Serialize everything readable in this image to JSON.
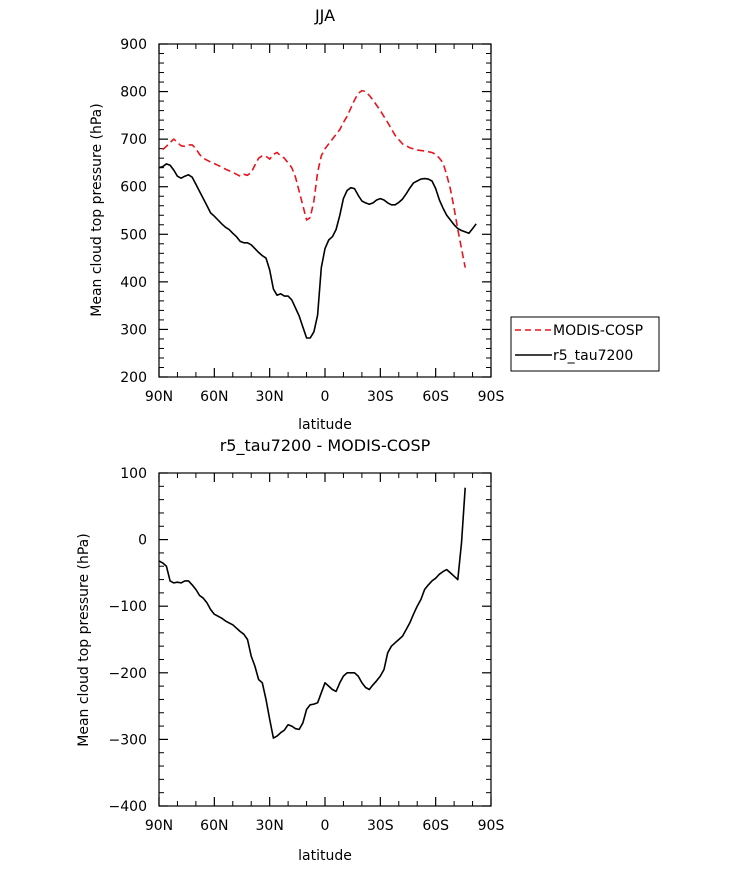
{
  "chart_data": [
    {
      "type": "line",
      "title": "JJA",
      "xlabel": "latitude",
      "ylabel": "Mean cloud top pressure (hPa)",
      "xlim": [
        -90,
        90
      ],
      "ylim": [
        200,
        900
      ],
      "x_ticks": [
        -90,
        -60,
        -30,
        0,
        30,
        60,
        90
      ],
      "x_tick_labels": [
        "90N",
        "60N",
        "30N",
        "0",
        "30S",
        "60S",
        "90S"
      ],
      "y_ticks": [
        200,
        300,
        400,
        500,
        600,
        700,
        800,
        900
      ],
      "y_tick_labels": [
        "200",
        "300",
        "400",
        "500",
        "600",
        "700",
        "800",
        "900"
      ],
      "legend": {
        "position": "right",
        "entries": [
          "MODIS-COSP",
          "r5_tau7200"
        ]
      },
      "series": [
        {
          "name": "MODIS-COSP",
          "color": "#e8141e",
          "dash": "dashed",
          "x": [
            -88,
            -86,
            -84,
            -82,
            -80,
            -78,
            -76,
            -74,
            -72,
            -70,
            -68,
            -66,
            -62,
            -58,
            -54,
            -50,
            -46,
            -44,
            -42,
            -40,
            -38,
            -36,
            -34,
            -32,
            -30,
            -28,
            -26,
            -24,
            -22,
            -20,
            -18,
            -16,
            -14,
            -12,
            -10,
            -8,
            -6,
            -4,
            -2,
            0,
            4,
            8,
            10,
            12,
            14,
            16,
            18,
            20,
            22,
            24,
            26,
            30,
            34,
            38,
            42,
            46,
            50,
            54,
            58,
            60,
            62,
            64,
            66,
            68,
            70,
            72,
            74,
            76
          ],
          "y": [
            678,
            685,
            693,
            700,
            693,
            686,
            685,
            688,
            688,
            680,
            668,
            660,
            652,
            645,
            637,
            630,
            622,
            626,
            624,
            630,
            645,
            660,
            665,
            664,
            658,
            668,
            672,
            665,
            660,
            650,
            640,
            620,
            590,
            560,
            530,
            535,
            570,
            630,
            665,
            680,
            700,
            720,
            735,
            748,
            765,
            782,
            796,
            802,
            800,
            792,
            782,
            760,
            735,
            708,
            690,
            682,
            677,
            675,
            672,
            668,
            660,
            650,
            625,
            595,
            555,
            510,
            470,
            430
          ]
        },
        {
          "name": "r5_tau7200",
          "color": "#000000",
          "dash": "solid",
          "x": [
            -90,
            -88,
            -86,
            -84,
            -82,
            -80,
            -78,
            -76,
            -74,
            -72,
            -70,
            -68,
            -66,
            -64,
            -62,
            -60,
            -58,
            -56,
            -54,
            -52,
            -50,
            -48,
            -46,
            -44,
            -42,
            -40,
            -38,
            -36,
            -34,
            -32,
            -30,
            -28,
            -26,
            -24,
            -22,
            -20,
            -18,
            -16,
            -14,
            -12,
            -10,
            -8,
            -6,
            -4,
            -2,
            0,
            2,
            4,
            6,
            8,
            10,
            12,
            14,
            16,
            18,
            20,
            22,
            24,
            26,
            28,
            30,
            32,
            34,
            36,
            38,
            40,
            42,
            44,
            46,
            48,
            50,
            52,
            54,
            56,
            58,
            60,
            62,
            64,
            66,
            68,
            70,
            72,
            74,
            76,
            78,
            80,
            82
          ],
          "y": [
            640,
            642,
            648,
            645,
            635,
            622,
            618,
            622,
            625,
            620,
            605,
            590,
            575,
            560,
            545,
            538,
            530,
            522,
            515,
            510,
            502,
            495,
            485,
            482,
            482,
            478,
            470,
            462,
            455,
            450,
            425,
            385,
            372,
            375,
            370,
            370,
            362,
            345,
            328,
            305,
            282,
            282,
            295,
            330,
            430,
            470,
            488,
            495,
            510,
            540,
            575,
            592,
            598,
            596,
            582,
            570,
            566,
            563,
            566,
            572,
            575,
            572,
            566,
            562,
            562,
            567,
            574,
            585,
            597,
            608,
            612,
            616,
            617,
            616,
            612,
            596,
            572,
            555,
            540,
            530,
            520,
            512,
            508,
            505,
            502,
            512,
            522
          ]
        }
      ]
    },
    {
      "type": "line",
      "title": "r5_tau7200 - MODIS-COSP",
      "xlabel": "latitude",
      "ylabel": "Mean cloud top pressure (hPa)",
      "xlim": [
        -90,
        90
      ],
      "ylim": [
        -400,
        100
      ],
      "x_ticks": [
        -90,
        -60,
        -30,
        0,
        30,
        60,
        90
      ],
      "x_tick_labels": [
        "90N",
        "60N",
        "30N",
        "0",
        "30S",
        "60S",
        "90S"
      ],
      "y_ticks": [
        -400,
        -300,
        -200,
        -100,
        0,
        100
      ],
      "y_tick_labels": [
        "−400",
        "−300",
        "−200",
        "−100",
        "0",
        "100"
      ],
      "series": [
        {
          "name": "r5_tau7200 - MODIS-COSP",
          "color": "#000000",
          "dash": "solid",
          "x": [
            -90,
            -88,
            -86,
            -84,
            -82,
            -80,
            -78,
            -76,
            -74,
            -72,
            -70,
            -68,
            -66,
            -64,
            -62,
            -60,
            -58,
            -56,
            -54,
            -52,
            -50,
            -48,
            -46,
            -44,
            -42,
            -40,
            -38,
            -36,
            -34,
            -32,
            -30,
            -28,
            -26,
            -24,
            -22,
            -20,
            -18,
            -16,
            -14,
            -12,
            -10,
            -8,
            -6,
            -4,
            -2,
            0,
            2,
            4,
            6,
            8,
            10,
            12,
            14,
            16,
            18,
            20,
            22,
            24,
            26,
            28,
            30,
            32,
            34,
            36,
            38,
            40,
            42,
            44,
            46,
            48,
            50,
            52,
            54,
            56,
            58,
            60,
            62,
            64,
            66,
            68,
            70,
            72,
            74,
            76
          ],
          "y": [
            -32,
            -35,
            -40,
            -62,
            -65,
            -64,
            -65,
            -62,
            -62,
            -68,
            -75,
            -84,
            -88,
            -95,
            -105,
            -112,
            -115,
            -118,
            -122,
            -125,
            -128,
            -133,
            -138,
            -142,
            -150,
            -175,
            -190,
            -210,
            -215,
            -240,
            -270,
            -298,
            -295,
            -290,
            -286,
            -278,
            -280,
            -284,
            -285,
            -275,
            -255,
            -248,
            -247,
            -245,
            -230,
            -215,
            -220,
            -225,
            -228,
            -215,
            -205,
            -200,
            -200,
            -200,
            -205,
            -215,
            -222,
            -225,
            -218,
            -212,
            -205,
            -195,
            -170,
            -160,
            -155,
            -150,
            -145,
            -135,
            -125,
            -112,
            -100,
            -90,
            -75,
            -68,
            -62,
            -58,
            -52,
            -48,
            -45,
            -50,
            -55,
            -60,
            -5,
            78
          ]
        }
      ]
    }
  ]
}
